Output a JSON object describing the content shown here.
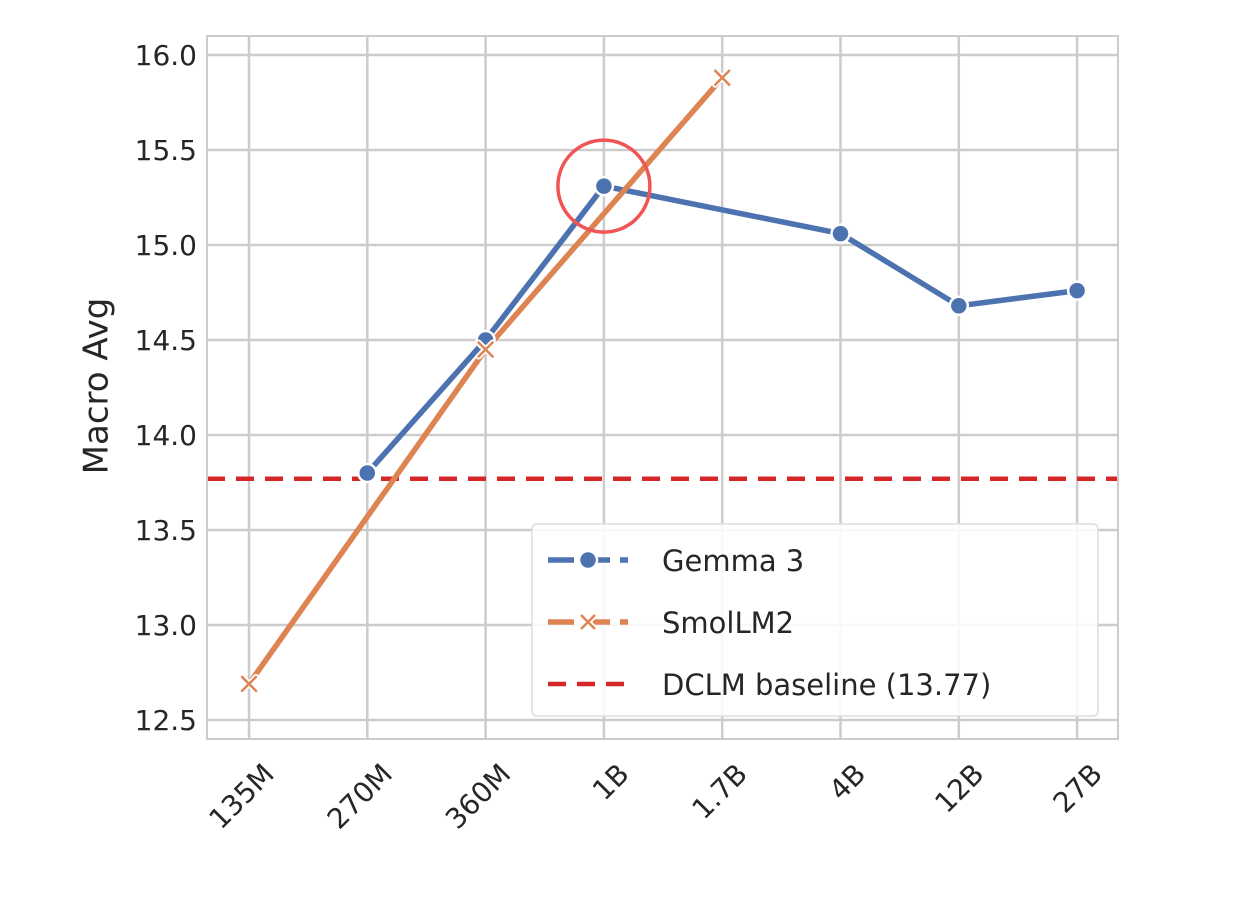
{
  "chart_data": {
    "type": "line",
    "title": "",
    "xlabel": "",
    "ylabel": "Macro Avg",
    "categories": [
      "135M",
      "270M",
      "360M",
      "1B",
      "1.7B",
      "4B",
      "12B",
      "27B"
    ],
    "ylim": [
      12.4,
      16.1
    ],
    "yticks": [
      "12.5",
      "13.0",
      "13.5",
      "14.0",
      "14.5",
      "15.0",
      "15.5",
      "16.0"
    ],
    "grid": true,
    "legend_position": "lower-right",
    "series": [
      {
        "name": "Gemma 3",
        "marker": "circle",
        "color": "#4c72b0",
        "values": [
          null,
          13.8,
          14.5,
          15.31,
          null,
          15.06,
          14.68,
          14.76
        ]
      },
      {
        "name": "SmolLM2",
        "marker": "x",
        "color": "#dd8452",
        "values": [
          12.69,
          null,
          14.45,
          null,
          15.88,
          null,
          null,
          null
        ]
      }
    ],
    "reference_lines": [
      {
        "name": "DCLM baseline (13.77)",
        "y": 13.77,
        "color": "#d62728",
        "style": "dashed"
      }
    ],
    "annotations": [
      {
        "type": "circle-highlight",
        "series": "Gemma 3",
        "category": "1B",
        "color": "#f05454"
      }
    ]
  }
}
